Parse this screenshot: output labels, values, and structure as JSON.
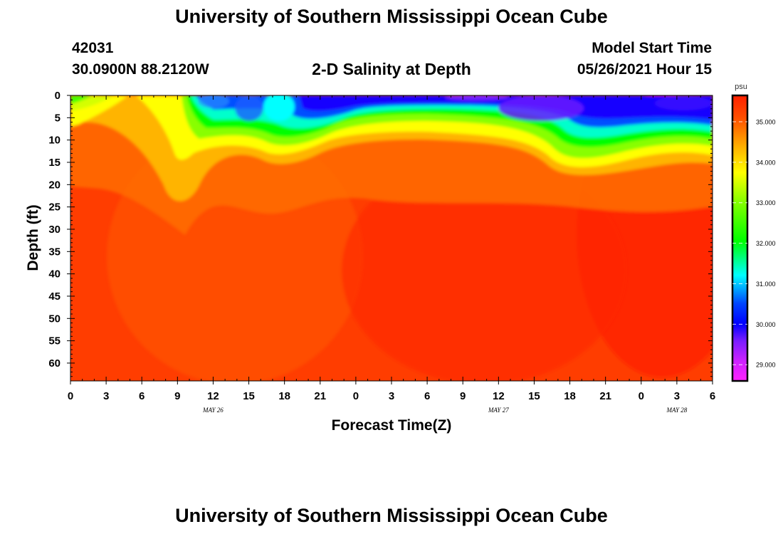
{
  "header": {
    "title": "University of Southern Mississippi Ocean Cube",
    "station_id": "42031",
    "location": "30.0900N  88.2120W",
    "plot_title": "2-D Salinity at Depth",
    "model_start_label": "Model Start Time",
    "model_start_value": "05/26/2021 Hour 15"
  },
  "footer": {
    "title": "University of Southern Mississippi Ocean Cube"
  },
  "chart_data": {
    "type": "heatmap",
    "title": "2-D Salinity at Depth",
    "xlabel": "Forecast Time(Z)",
    "ylabel": "Depth (ft)",
    "x_ticks": [
      "0",
      "3",
      "6",
      "9",
      "12",
      "15",
      "18",
      "21",
      "0",
      "3",
      "6",
      "9",
      "12",
      "15",
      "18",
      "21",
      "0",
      "3",
      "6"
    ],
    "x_range_hours": [
      0,
      54
    ],
    "date_labels": [
      {
        "label": "MAY 26",
        "hour": 12
      },
      {
        "label": "MAY 27",
        "hour": 36
      },
      {
        "label": "MAY 28",
        "hour": 51
      }
    ],
    "y_ticks": [
      0,
      5,
      10,
      15,
      20,
      25,
      30,
      35,
      40,
      45,
      50,
      55,
      60
    ],
    "ylim_ft": [
      0,
      64
    ],
    "colorbar": {
      "unit": "psu",
      "range": [
        28.6,
        35.65
      ],
      "tick_labels": [
        "29.000",
        "30.000",
        "31.000",
        "32.000",
        "33.000",
        "34.000",
        "35.000"
      ],
      "tick_values": [
        29,
        30,
        31,
        32,
        33,
        34,
        35
      ]
    },
    "surface_layer_depth_ft": [
      {
        "hour": 0,
        "depth": 2
      },
      {
        "hour": 3,
        "depth": 1
      },
      {
        "hour": 6,
        "depth": 0
      },
      {
        "hour": 9,
        "depth": 0
      },
      {
        "hour": 10,
        "depth": 4
      },
      {
        "hour": 12,
        "depth": 10
      },
      {
        "hour": 15,
        "depth": 11
      },
      {
        "hour": 18,
        "depth": 14
      },
      {
        "hour": 21,
        "depth": 11
      },
      {
        "hour": 24,
        "depth": 9
      },
      {
        "hour": 30,
        "depth": 9
      },
      {
        "hour": 36,
        "depth": 10
      },
      {
        "hour": 40,
        "depth": 11
      },
      {
        "hour": 42,
        "depth": 16
      },
      {
        "hour": 45,
        "depth": 15
      },
      {
        "hour": 48,
        "depth": 13
      },
      {
        "hour": 51,
        "depth": 11
      },
      {
        "hour": 54,
        "depth": 10
      }
    ],
    "notes": "Fresher water (29-31 psu) near surface from ~hour 11 onward; salinity ~34.5-35.5 psu below ~20 ft."
  }
}
